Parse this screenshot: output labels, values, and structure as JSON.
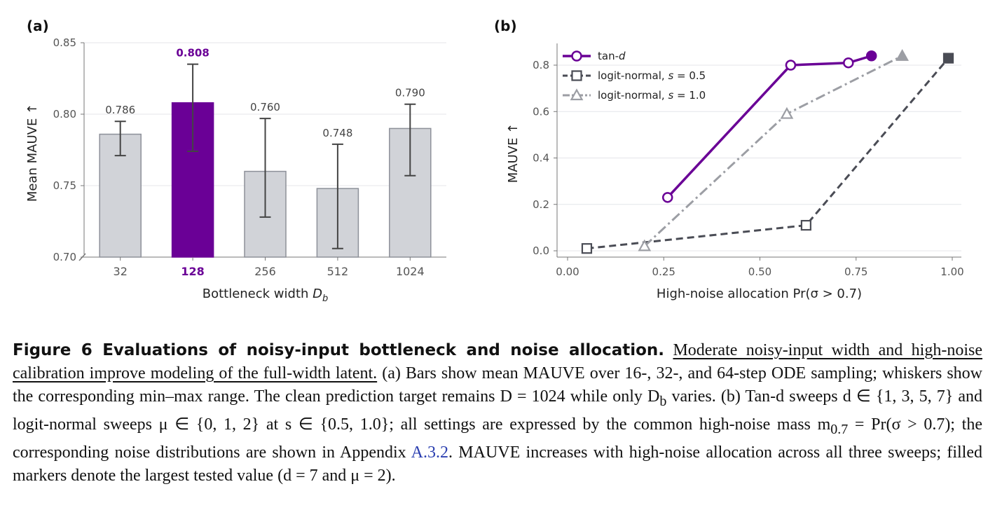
{
  "chart_data": [
    {
      "type": "bar",
      "panel_label": "(a)",
      "xlabel": "Bottleneck width",
      "xlabel_var": "D",
      "xlabel_sub": "b",
      "ylabel": "Mean MAUVE ↑",
      "ylim": [
        0.7,
        0.85
      ],
      "yticks": [
        "0.70",
        "0.75",
        "0.80",
        "0.85"
      ],
      "ytick_values": [
        0.7,
        0.75,
        0.8,
        0.85
      ],
      "categories": [
        "32",
        "128",
        "256",
        "512",
        "1024"
      ],
      "values": [
        0.786,
        0.808,
        0.76,
        0.748,
        0.79
      ],
      "value_labels": [
        "0.786",
        "0.808",
        "0.760",
        "0.748",
        "0.790"
      ],
      "err_min": [
        0.771,
        0.774,
        0.728,
        0.706,
        0.757
      ],
      "err_max": [
        0.795,
        0.835,
        0.797,
        0.779,
        0.807
      ],
      "highlight_index": 1,
      "bar_color": "#d1d3d8",
      "bar_edge": "#8d9099",
      "highlight_color": "#6a0096",
      "grid": true
    },
    {
      "type": "line",
      "panel_label": "(b)",
      "xlabel": "High-noise allocation  Pr(σ > 0.7)",
      "ylabel": "MAUVE ↑",
      "xlim": [
        0.0,
        1.0
      ],
      "ylim": [
        0.0,
        0.8
      ],
      "xticks": [
        "0.00",
        "0.25",
        "0.50",
        "0.75",
        "1.00"
      ],
      "xtick_values": [
        0,
        0.25,
        0.5,
        0.75,
        1.0
      ],
      "yticks": [
        "0.0",
        "0.2",
        "0.4",
        "0.6",
        "0.8"
      ],
      "ytick_values": [
        0,
        0.2,
        0.4,
        0.6,
        0.8
      ],
      "grid": true,
      "legend_position": "top-left",
      "series": [
        {
          "name": "tan-d",
          "name_main": "tan-",
          "name_ital": "d",
          "color": "#6a0096",
          "style": "solid",
          "marker": "circle",
          "x": [
            0.26,
            0.58,
            0.73,
            0.79
          ],
          "y": [
            0.23,
            0.8,
            0.81,
            0.84
          ]
        },
        {
          "name": "logit-normal, s = 0.5",
          "name_main": "logit-normal, ",
          "name_ital": "s",
          "name_tail": " = 0.5",
          "color": "#4a4c55",
          "style": "dashed",
          "marker": "square",
          "x": [
            0.05,
            0.62,
            0.99
          ],
          "y": [
            0.01,
            0.11,
            0.83
          ]
        },
        {
          "name": "logit-normal, s = 1.0",
          "name_main": "logit-normal, ",
          "name_ital": "s",
          "name_tail": " = 1.0",
          "color": "#9c9ea4",
          "style": "dashdot",
          "marker": "triangle",
          "x": [
            0.2,
            0.57,
            0.87
          ],
          "y": [
            0.02,
            0.59,
            0.84
          ]
        }
      ]
    }
  ],
  "caption": {
    "title": "Figure 6  Evaluations of noisy-input bottleneck and noise allocation.",
    "underlined": "Moderate noisy-input width and high-noise calibration improve modeling of the full-width latent.",
    "body1": "(a) Bars show mean MAUVE over 16-, 32-, and 64-step ODE sampling; whiskers show the corresponding min–max range. The clean prediction target remains D = 1024 while only D",
    "body1_sub": "b",
    "body2": " varies. (b) Tan-d sweeps d ∈ {1, 3, 5, 7} and logit-normal sweeps μ ∈ {0, 1, 2} at s ∈ {0.5, 1.0}; all settings are expressed by the common high-noise mass m",
    "body2_sub": "0.7",
    "body3": " = Pr(σ > 0.7); the corresponding noise distributions are shown in Appendix ",
    "appendix_link": "A.3.2",
    "body4": ". MAUVE increases with high-noise allocation across all three sweeps; filled markers denote the largest tested value (d = 7 and μ = 2)."
  }
}
